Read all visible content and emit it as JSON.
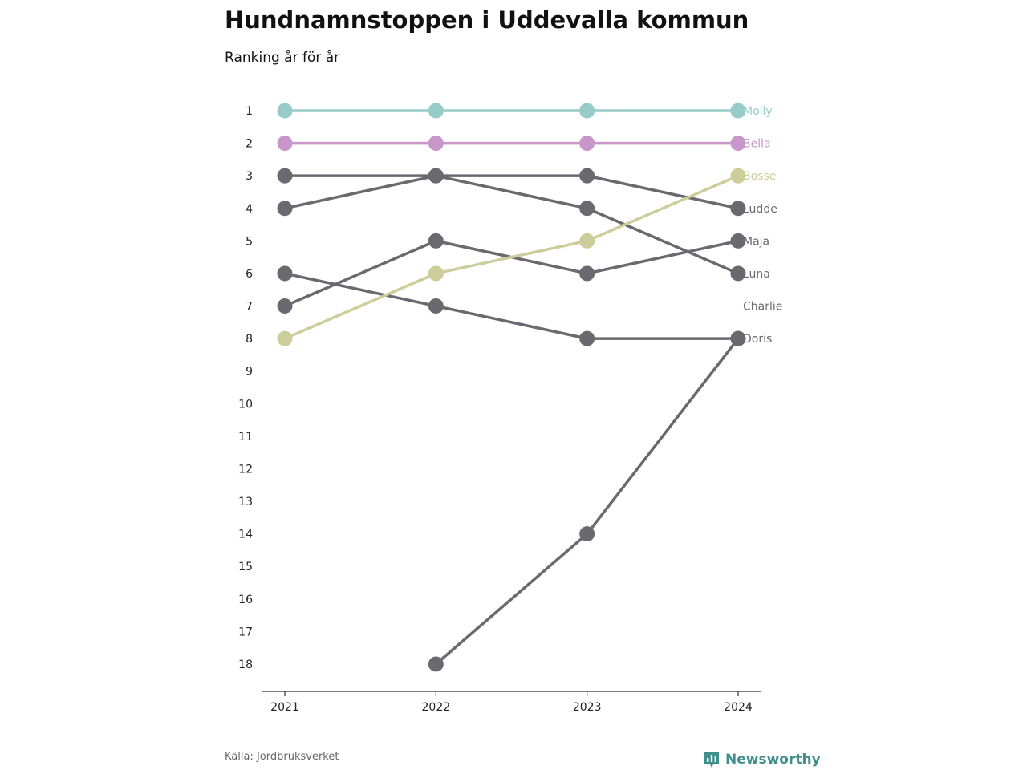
{
  "header": {
    "title": "Hundnamnstoppen i Uddevalla kommun",
    "subtitle": "Ranking år för år"
  },
  "footer": {
    "source": "Källa: Jordbruksverket",
    "brand": "Newsworthy",
    "brand_icon": "bar-chart-badge-icon",
    "brand_color": "#3f8f8c"
  },
  "chart_data": {
    "type": "line",
    "title": "Hundnamnstoppen i Uddevalla kommun",
    "subtitle": "Ranking år för år",
    "x": [
      2021,
      2022,
      2023,
      2024
    ],
    "y_ticks": [
      1,
      2,
      3,
      4,
      5,
      6,
      7,
      8,
      9,
      10,
      11,
      12,
      13,
      14,
      15,
      16,
      17,
      18
    ],
    "ylim": [
      1,
      18
    ],
    "y_inverted": true,
    "grid": false,
    "legend": "end-labels-right",
    "series": [
      {
        "name": "Charlie",
        "values": [
          6,
          7,
          8,
          8
        ],
        "color": "#6a696f",
        "label_rank": 7
      },
      {
        "name": "Doris",
        "values": [
          null,
          18,
          14,
          8
        ],
        "color": "#6a696f",
        "label_rank": 8
      },
      {
        "name": "Luna",
        "values": [
          3,
          3,
          4,
          6
        ],
        "color": "#6a696f",
        "label_rank": 6
      },
      {
        "name": "Maja",
        "values": [
          7,
          5,
          6,
          5
        ],
        "color": "#6a696f",
        "label_rank": 5
      },
      {
        "name": "Ludde",
        "values": [
          4,
          3,
          3,
          4
        ],
        "color": "#6a696f",
        "label_rank": 4
      },
      {
        "name": "Bosse",
        "values": [
          8,
          6,
          5,
          3
        ],
        "color": "#cdcd9c",
        "label_rank": 3
      },
      {
        "name": "Bella",
        "values": [
          2,
          2,
          2,
          2
        ],
        "color": "#c897c9",
        "label_rank": 2
      },
      {
        "name": "Molly",
        "values": [
          1,
          1,
          1,
          1
        ],
        "color": "#97cbc9",
        "label_rank": 1
      }
    ]
  }
}
